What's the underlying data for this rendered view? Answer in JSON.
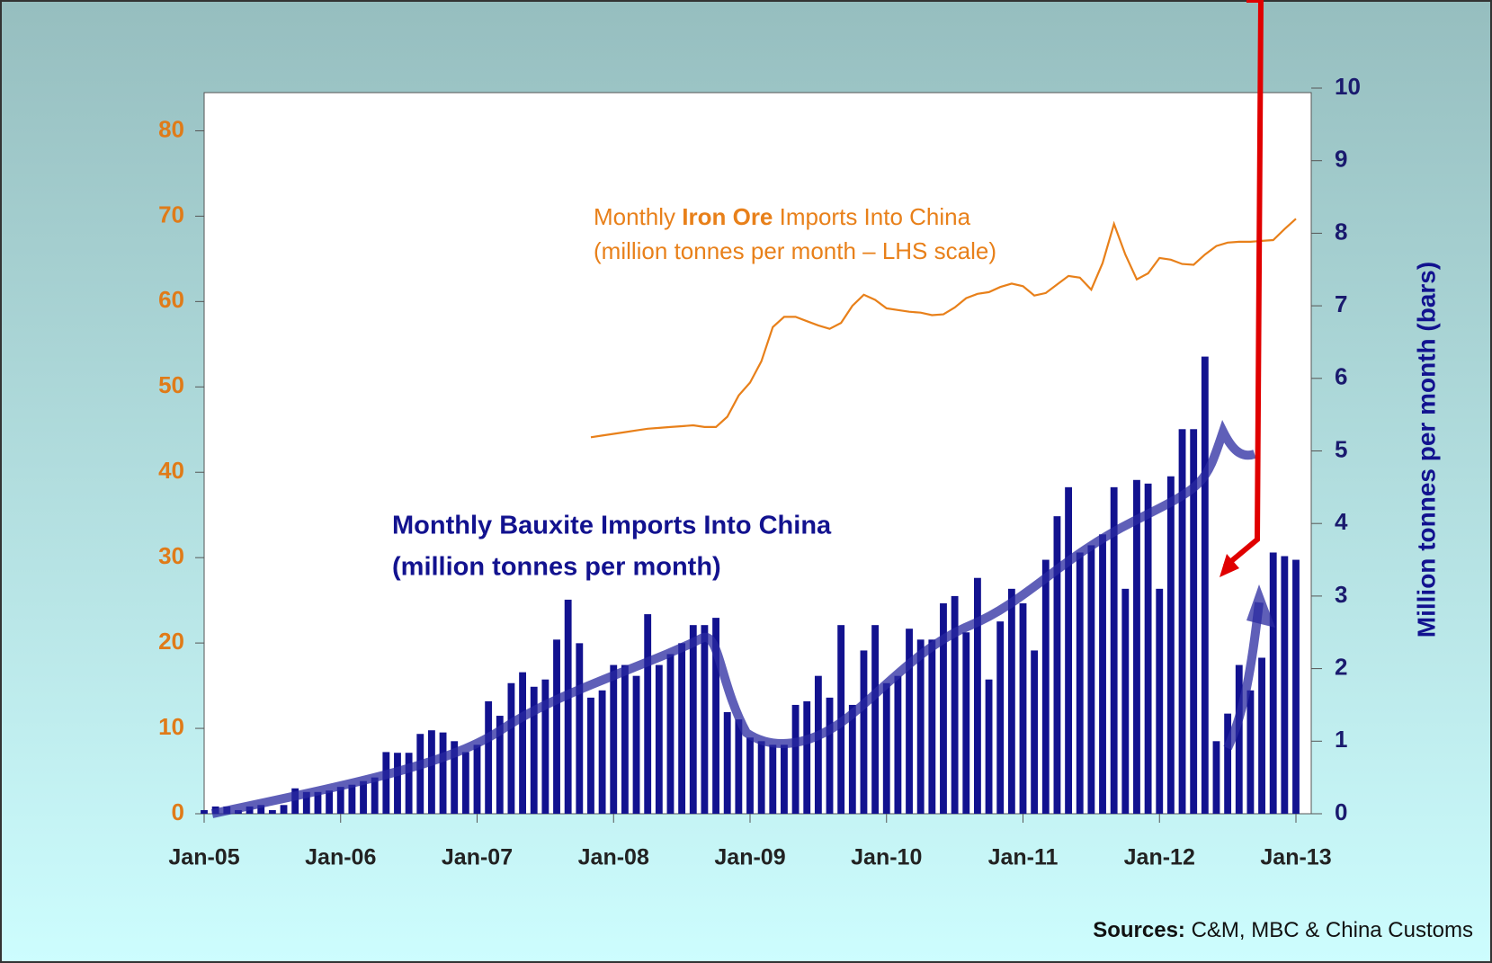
{
  "chart_data": {
    "type": "bar-line",
    "categories": [
      "Jan-05",
      null,
      null,
      null,
      null,
      null,
      null,
      null,
      null,
      null,
      null,
      null,
      "Jan-06",
      null,
      null,
      null,
      null,
      null,
      null,
      null,
      null,
      null,
      null,
      null,
      "Jan-07",
      null,
      null,
      null,
      null,
      null,
      null,
      null,
      null,
      null,
      null,
      null,
      "Jan-08",
      null,
      null,
      null,
      null,
      null,
      null,
      null,
      null,
      null,
      null,
      null,
      "Jan-09",
      null,
      null,
      null,
      null,
      null,
      null,
      null,
      null,
      null,
      null,
      null,
      "Jan-10",
      null,
      null,
      null,
      null,
      null,
      null,
      null,
      null,
      null,
      null,
      null,
      "Jan-11",
      null,
      null,
      null,
      null,
      null,
      null,
      null,
      null,
      null,
      null,
      null,
      "Jan-12",
      null,
      null,
      null,
      null,
      null,
      null,
      null,
      null,
      null,
      null,
      null,
      "Jan-13"
    ],
    "series": [
      {
        "name": "Monthly Bauxite Imports Into China",
        "type": "bar",
        "axis": "y2",
        "color": "#12128f",
        "values": [
          0.05,
          0.1,
          0.1,
          0.05,
          0.1,
          0.12,
          0.05,
          0.12,
          0.35,
          0.3,
          0.3,
          0.32,
          0.37,
          0.4,
          0.45,
          0.5,
          0.85,
          0.84,
          0.84,
          1.1,
          1.15,
          1.12,
          1.0,
          0.85,
          0.95,
          1.55,
          1.35,
          1.8,
          1.95,
          1.75,
          1.85,
          2.4,
          2.95,
          2.35,
          1.6,
          1.7,
          2.05,
          2.05,
          1.9,
          2.75,
          2.05,
          2.2,
          2.35,
          2.6,
          2.6,
          2.7,
          1.4,
          1.3,
          1.05,
          1.0,
          0.95,
          0.95,
          1.5,
          1.55,
          1.9,
          1.6,
          2.6,
          1.5,
          2.25,
          2.6,
          1.8,
          1.9,
          2.55,
          2.4,
          2.4,
          2.9,
          3.0,
          2.5,
          3.25,
          1.85,
          2.65,
          3.1,
          2.9,
          2.25,
          3.5,
          4.1,
          4.5,
          3.6,
          3.7,
          3.85,
          4.5,
          3.1,
          4.6,
          4.55,
          3.1,
          4.65,
          5.3,
          5.3,
          6.3,
          1.0,
          1.38,
          2.05,
          1.7,
          2.15,
          3.6,
          3.55,
          3.5
        ]
      },
      {
        "name": "Monthly Iron Ore Imports Into China",
        "type": "line",
        "axis": "y",
        "color": "#e8801a",
        "values": [
          null,
          null,
          null,
          null,
          null,
          null,
          null,
          null,
          null,
          null,
          null,
          null,
          null,
          null,
          null,
          null,
          null,
          null,
          null,
          null,
          null,
          null,
          null,
          null,
          null,
          null,
          null,
          null,
          null,
          null,
          null,
          null,
          null,
          null,
          44.1,
          44.3,
          44.5,
          44.7,
          44.9,
          45.1,
          45.2,
          45.3,
          45.4,
          45.5,
          45.3,
          45.3,
          46.5,
          49,
          50.5,
          53,
          57,
          58.2,
          58.2,
          57.7,
          57.2,
          56.8,
          57.5,
          59.5,
          60.8,
          60.2,
          59.2,
          59,
          58.8,
          58.7,
          58.4,
          58.5,
          59.3,
          60.4,
          60.9,
          61.1,
          61.7,
          62.1,
          61.8,
          60.7,
          61.0,
          62.0,
          63.0,
          62.8,
          61.4,
          64.5,
          69.1,
          65.5,
          62.6,
          63.3,
          65.1,
          64.9,
          64.4,
          64.3,
          65.5,
          66.5,
          66.9,
          67,
          67,
          67.1,
          67.2,
          68.5,
          69.7
        ]
      }
    ],
    "ylim": [
      0,
      85
    ],
    "yticks": [
      0,
      10,
      20,
      30,
      40,
      50,
      60,
      70,
      80
    ],
    "y2lim": [
      0,
      10
    ],
    "y2ticks": [
      0,
      1,
      2,
      3,
      4,
      5,
      6,
      7,
      8,
      9,
      10
    ],
    "y2label": "Million tonnes per month (bars)",
    "annotations": {
      "iron_ore": [
        "Monthly ",
        "Iron Ore",
        " Imports Into China",
        "(million tonnes per month – LHS scale)"
      ],
      "bauxite": [
        "Monthly Bauxite Imports Into China",
        "(million tonnes per month)"
      ],
      "sources": [
        "Sources:",
        " C&M, MBC & China Customs"
      ]
    }
  }
}
